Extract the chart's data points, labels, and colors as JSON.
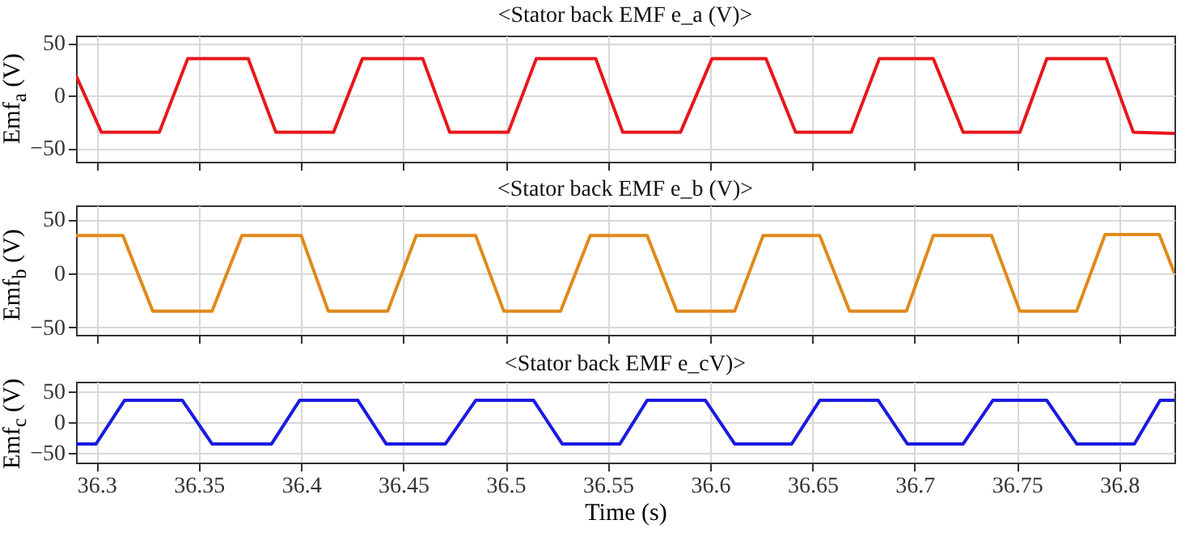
{
  "chart_data": [
    {
      "type": "line",
      "title": "<Stator back EMF e_a (V)>",
      "ylabel": "Emf$_{a}$ (V)",
      "x": [
        36.29,
        36.3024,
        36.3307,
        36.3446,
        36.3742,
        36.3877,
        36.4159,
        36.43,
        36.4595,
        36.4727,
        36.5013,
        36.515,
        36.5441,
        36.5573,
        36.5855,
        36.6009,
        36.6273,
        36.6418,
        36.669,
        36.6827,
        36.7091,
        36.7237,
        36.7514,
        36.7646,
        36.7937,
        36.8069,
        36.827
      ],
      "series": [
        {
          "color": "#e8161b",
          "values": [
            19,
            -35,
            -35,
            35,
            35,
            -35,
            -35,
            35,
            35,
            -35,
            -35,
            35,
            35,
            -35,
            -35,
            35,
            35,
            -35,
            -35,
            35,
            35,
            -35,
            -35,
            35,
            35,
            -35,
            -36
          ]
        }
      ],
      "xlim": [
        36.29,
        36.827
      ],
      "ylim": [
        -63,
        57
      ],
      "xticks": [
        36.3,
        36.35,
        36.4,
        36.45,
        36.5,
        36.55,
        36.6,
        36.65,
        36.7,
        36.75,
        36.8
      ],
      "yticks": [
        -50,
        0,
        50
      ],
      "grid": true,
      "tick_labels": "y"
    },
    {
      "type": "line",
      "title": "<Stator back EMF e_b (V)>",
      "ylabel": "Emf$_{b}$ (V)",
      "x": [
        36.29,
        36.3129,
        36.3275,
        36.3565,
        36.3711,
        36.4001,
        36.4133,
        36.4424,
        36.4563,
        36.4854,
        36.4991,
        36.5269,
        36.5414,
        36.5692,
        36.5837,
        36.612,
        36.6259,
        36.6536,
        36.6682,
        36.696,
        36.7091,
        36.7376,
        36.7514,
        36.7792,
        36.7931,
        36.8196,
        36.827
      ],
      "series": [
        {
          "color": "#e08a1a",
          "values": [
            35,
            35,
            -35,
            -35,
            35,
            35,
            -35,
            -35,
            35,
            35,
            -35,
            -35,
            35,
            35,
            -35,
            -35,
            35,
            35,
            -35,
            -35,
            35,
            35,
            -35,
            -35,
            36,
            36,
            0
          ]
        }
      ],
      "xlim": [
        36.29,
        36.827
      ],
      "ylim": [
        -57,
        63
      ],
      "xticks": [
        36.3,
        36.35,
        36.4,
        36.45,
        36.5,
        36.55,
        36.6,
        36.65,
        36.7,
        36.75,
        36.8
      ],
      "yticks": [
        -50,
        0,
        50
      ],
      "grid": true,
      "tick_labels": "y"
    },
    {
      "type": "line",
      "title": "<Stator back EMF e_cV)>",
      "ylabel": "Emf$_{c}$ (V)",
      "xlabel": "Time (s)",
      "x": [
        36.29,
        36.2998,
        36.3137,
        36.342,
        36.3565,
        36.3856,
        36.3993,
        36.4278,
        36.4416,
        36.4706,
        36.4854,
        36.5137,
        36.5277,
        36.5559,
        36.5692,
        36.5977,
        36.612,
        36.6399,
        36.6536,
        36.6822,
        36.6964,
        36.7237,
        36.7382,
        36.7646,
        36.7792,
        36.8074,
        36.82,
        36.827
      ],
      "series": [
        {
          "color": "#1a1ae0",
          "values": [
            -35,
            -35,
            35,
            35,
            -35,
            -35,
            35,
            35,
            -35,
            -35,
            35,
            35,
            -35,
            -35,
            35,
            35,
            -35,
            -35,
            35,
            35,
            -35,
            -35,
            35,
            35,
            -35,
            -35,
            35,
            35
          ]
        }
      ],
      "xlim": [
        36.29,
        36.827
      ],
      "ylim": [
        -65,
        65
      ],
      "xticks": [
        36.3,
        36.35,
        36.4,
        36.45,
        36.5,
        36.55,
        36.6,
        36.65,
        36.7,
        36.75,
        36.8
      ],
      "yticks": [
        -50,
        0,
        50
      ],
      "grid": true
    }
  ]
}
